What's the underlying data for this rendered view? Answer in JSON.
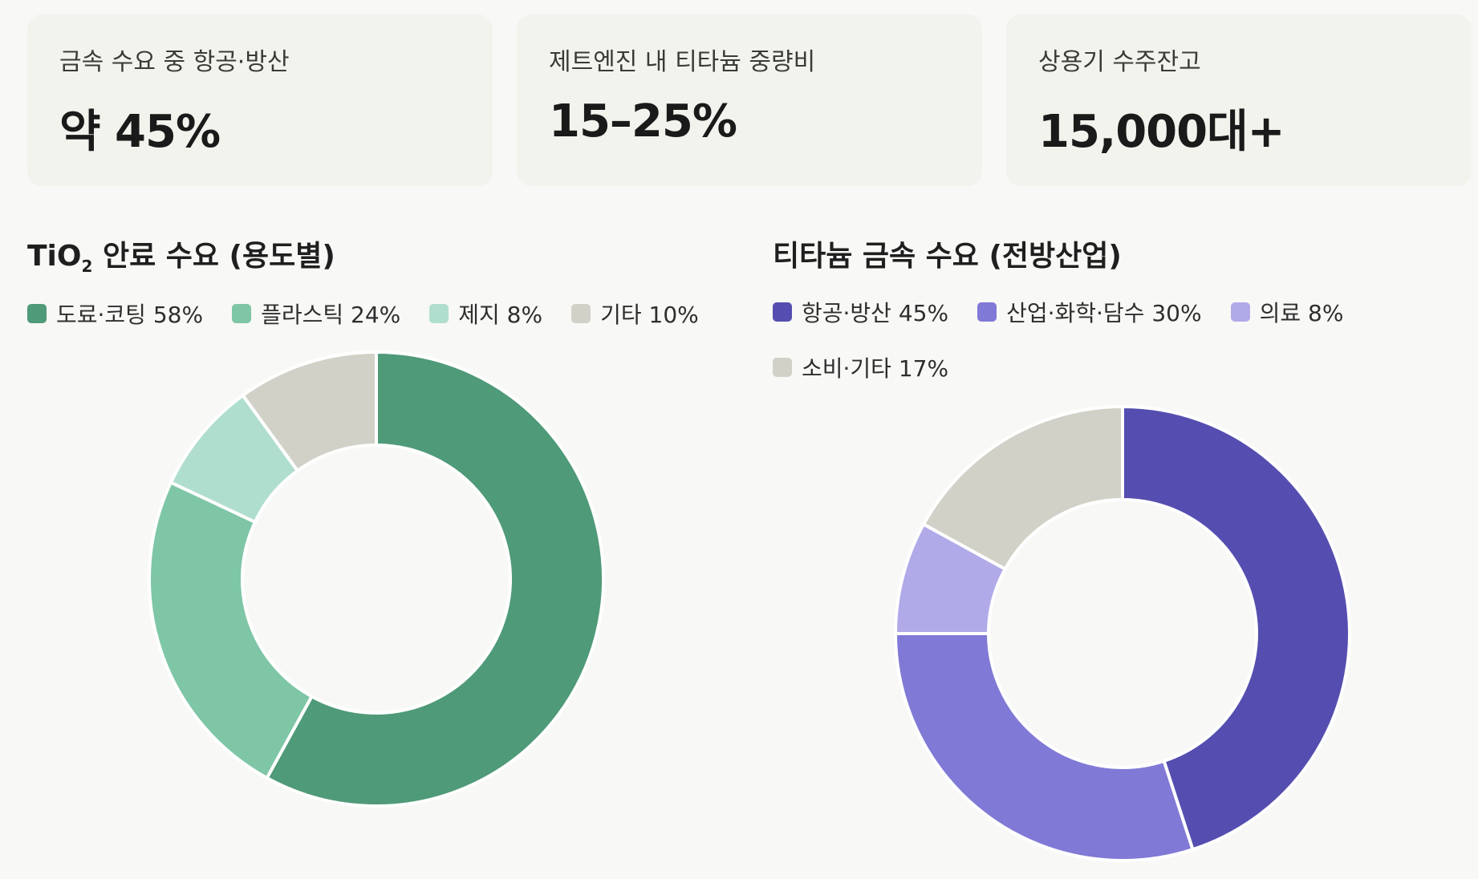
{
  "stats": [
    {
      "label": "금속 수요 중 항공·방산",
      "value": "약 45%"
    },
    {
      "label": "제트엔진 내 티타늄 중량비",
      "value": "15–25%"
    },
    {
      "label": "상용기 수주잔고",
      "value": "15,000대+"
    }
  ],
  "chart_data": [
    {
      "type": "pie",
      "variant": "donut",
      "title_main": "TiO",
      "title_sub": "2",
      "title_rest": " 안료 수요 (용도별)",
      "legend_placement": "top",
      "categories": [
        "도료·코팅",
        "플라스틱",
        "제지",
        "기타"
      ],
      "values": [
        58,
        24,
        8,
        10
      ],
      "legend_labels": [
        "도료·코팅 58%",
        "플라스틱 24%",
        "제지 8%",
        "기타 10%"
      ],
      "colors": [
        "#4f9a78",
        "#7ec6a6",
        "#b0dece",
        "#d2d1c8"
      ]
    },
    {
      "type": "pie",
      "variant": "donut",
      "title": "티타늄 금속 수요 (전방산업)",
      "legend_placement": "top",
      "categories": [
        "항공·방산",
        "산업·화학·담수",
        "의료",
        "소비·기타"
      ],
      "values": [
        45,
        30,
        8,
        17
      ],
      "legend_labels": [
        "항공·방산 45%",
        "산업·화학·담수 30%",
        "의료 8%",
        "소비·기타 17%"
      ],
      "colors": [
        "#554eb0",
        "#8079d6",
        "#b0aae9",
        "#d2d1c8"
      ]
    }
  ]
}
